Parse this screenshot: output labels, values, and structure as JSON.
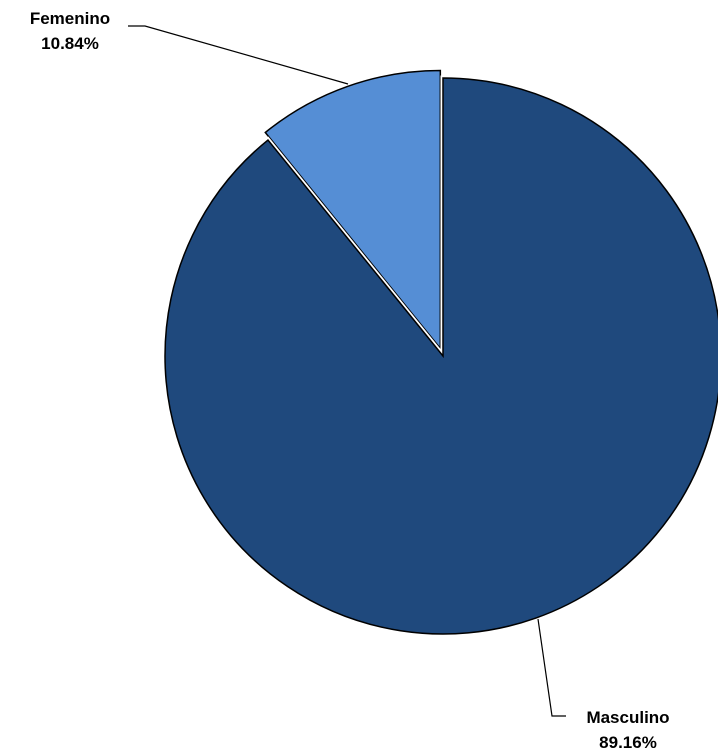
{
  "chart_data": {
    "type": "pie",
    "title": "",
    "slices": [
      {
        "name": "Femenino",
        "label": "10.84%",
        "value": 10.84,
        "color": "#558ed5",
        "exploded": true
      },
      {
        "name": "Masculino",
        "label": "89.16%",
        "value": 89.16,
        "color": "#1f497d",
        "exploded": false
      }
    ],
    "legend": "none",
    "start_angle_deg": 0
  }
}
